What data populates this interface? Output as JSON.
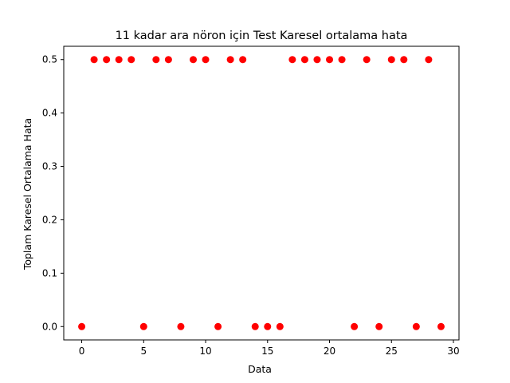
{
  "chart_data": {
    "type": "scatter",
    "title": "11 kadar ara nöron için Test Karesel ortalama hata",
    "xlabel": "Data",
    "ylabel": "Toplam Karesel Ortalama Hata",
    "xlim": [
      -1.45,
      30.45
    ],
    "ylim": [
      -0.025,
      0.525
    ],
    "xticks": [
      0,
      5,
      10,
      15,
      20,
      25,
      30
    ],
    "xtick_labels": [
      "0",
      "5",
      "10",
      "15",
      "20",
      "25",
      "30"
    ],
    "yticks": [
      0.0,
      0.1,
      0.2,
      0.3,
      0.4,
      0.5
    ],
    "ytick_labels": [
      "0.0",
      "0.1",
      "0.2",
      "0.3",
      "0.4",
      "0.5"
    ],
    "grid": false,
    "marker_color": "#ff0000",
    "x": [
      0,
      1,
      2,
      3,
      4,
      5,
      6,
      7,
      8,
      9,
      10,
      11,
      12,
      13,
      14,
      15,
      16,
      17,
      18,
      19,
      20,
      21,
      22,
      23,
      24,
      25,
      26,
      27,
      28,
      29
    ],
    "y": [
      0,
      0.5,
      0.5,
      0.5,
      0.5,
      0,
      0.5,
      0.5,
      0,
      0.5,
      0.5,
      0,
      0.5,
      0.5,
      0,
      0,
      0,
      0.5,
      0.5,
      0.5,
      0.5,
      0.5,
      0,
      0.5,
      0,
      0.5,
      0.5,
      0,
      0.5,
      0
    ]
  }
}
